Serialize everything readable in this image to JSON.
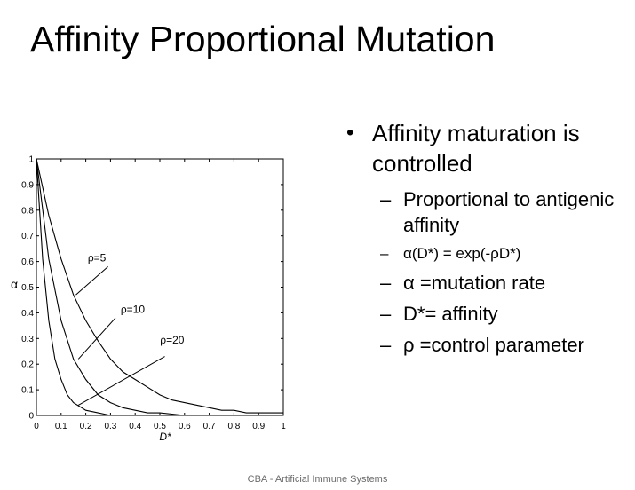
{
  "slide": {
    "title": "Affinity Proportional Mutation",
    "footer": "CBA - Artificial Immune Systems"
  },
  "bullets": {
    "main": "Affinity maturation is controlled",
    "sub": [
      "Proportional to antigenic affinity",
      "α(D*) = exp(-ρD*)",
      "α =mutation rate",
      "D*= affinity",
      "ρ =control parameter"
    ]
  },
  "chart_data": {
    "type": "line",
    "title": "",
    "xlabel": "D*",
    "ylabel": "α",
    "xlim": [
      0,
      1
    ],
    "ylim": [
      0,
      1
    ],
    "xticks": [
      "0",
      "0.1",
      "0.2",
      "0.3",
      "0.4",
      "0.5",
      "0.6",
      "0.7",
      "0.8",
      "0.9",
      "1"
    ],
    "yticks": [
      "0",
      "0.1",
      "0.2",
      "0.3",
      "0.4",
      "0.5",
      "0.6",
      "0.7",
      "0.8",
      "0.9",
      "1"
    ],
    "grid": false,
    "legend": "none",
    "series": [
      {
        "name": "ρ=5",
        "x": [
          0,
          0.05,
          0.1,
          0.15,
          0.2,
          0.25,
          0.3,
          0.35,
          0.4,
          0.45,
          0.5,
          0.55,
          0.6,
          0.65,
          0.7,
          0.75,
          0.8,
          0.85,
          0.9,
          0.95,
          1
        ],
        "y": [
          1,
          0.78,
          0.61,
          0.47,
          0.37,
          0.29,
          0.22,
          0.17,
          0.14,
          0.11,
          0.08,
          0.06,
          0.05,
          0.04,
          0.03,
          0.02,
          0.02,
          0.01,
          0.01,
          0.01,
          0.01
        ]
      },
      {
        "name": "ρ=10",
        "x": [
          0,
          0.05,
          0.1,
          0.15,
          0.2,
          0.25,
          0.3,
          0.35,
          0.4,
          0.45,
          0.5,
          0.6,
          0.7,
          0.8,
          0.9,
          1
        ],
        "y": [
          1,
          0.61,
          0.37,
          0.22,
          0.14,
          0.08,
          0.05,
          0.03,
          0.02,
          0.01,
          0.01,
          0,
          0,
          0,
          0,
          0
        ]
      },
      {
        "name": "ρ=20",
        "x": [
          0,
          0.025,
          0.05,
          0.075,
          0.1,
          0.125,
          0.15,
          0.2,
          0.25,
          0.3,
          0.4,
          0.5,
          0.7,
          1
        ],
        "y": [
          1,
          0.61,
          0.37,
          0.22,
          0.14,
          0.08,
          0.05,
          0.02,
          0.01,
          0,
          0,
          0,
          0,
          0
        ]
      }
    ],
    "annotations": [
      "ρ=5",
      "ρ=10",
      "ρ=20"
    ]
  }
}
